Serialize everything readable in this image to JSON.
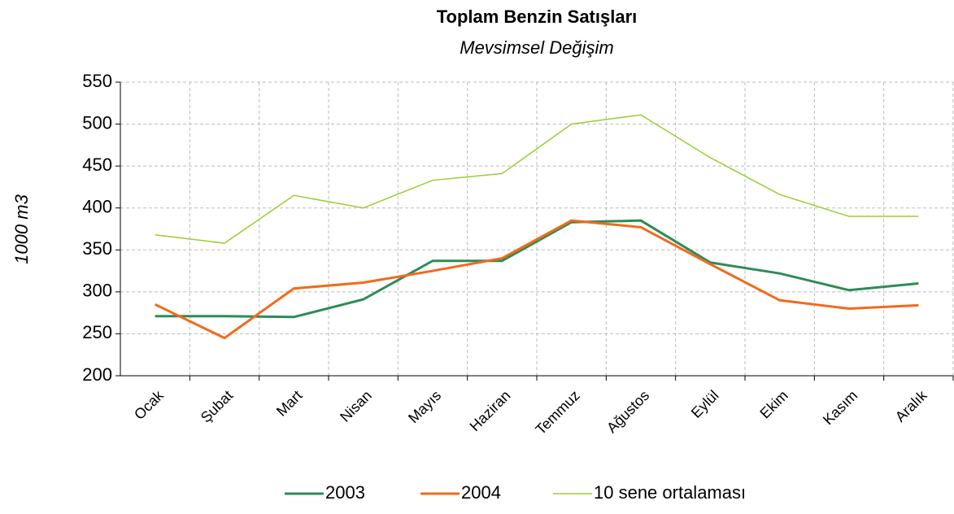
{
  "chart_data": {
    "type": "line",
    "title": "Toplam Benzin Satışları",
    "subtitle": "Mevsimsel Değişim",
    "y_label": "1000 m3",
    "categories": [
      "Ocak",
      "Şubat",
      "Mart",
      "Nisan",
      "Mayıs",
      "Haziran",
      "Temmuz",
      "Ağustos",
      "Eylül",
      "Ekim",
      "Kasım",
      "Aralık"
    ],
    "series": [
      {
        "name": "2003",
        "color": "#2e8b57",
        "values": [
          271,
          271,
          270,
          291,
          337,
          337,
          383,
          385,
          335,
          322,
          302,
          310
        ]
      },
      {
        "name": "2004",
        "color": "#f26a1b",
        "values": [
          285,
          245,
          304,
          311,
          325,
          340,
          385,
          377,
          333,
          290,
          280,
          284
        ]
      },
      {
        "name": "10 sene ortalaması",
        "color": "#9acd32",
        "values": [
          368,
          358,
          415,
          400,
          433,
          441,
          500,
          511,
          460,
          416,
          390,
          390
        ]
      }
    ],
    "ylim": [
      200,
      550
    ],
    "yticks": [
      200,
      250,
      300,
      350,
      400,
      450,
      500,
      550
    ],
    "grid": true,
    "legend": "bottom"
  }
}
